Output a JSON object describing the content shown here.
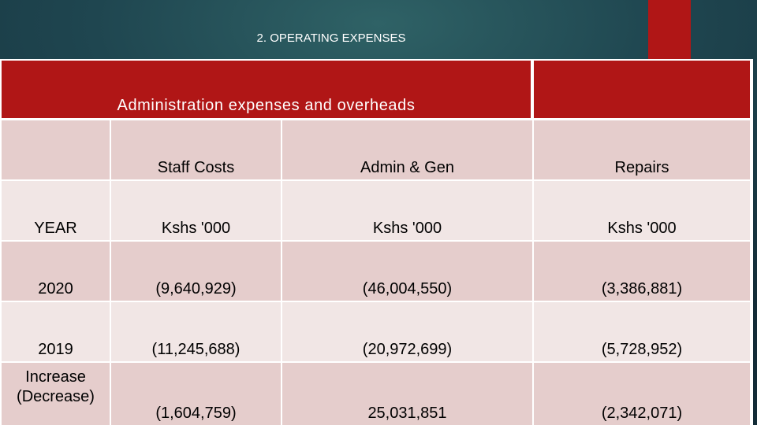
{
  "slide": {
    "title": "2. OPERATING EXPENSES"
  },
  "table": {
    "caption": "Administration expenses and overheads",
    "columns": [
      "",
      "Staff Costs",
      "Admin & Gen",
      "Repairs"
    ],
    "units_row": [
      "YEAR",
      "Kshs '000",
      "Kshs '000",
      "Kshs '000"
    ],
    "rows": [
      {
        "label": "2020",
        "values": [
          "(9,640,929)",
          "(46,004,550)",
          "(3,386,881)"
        ]
      },
      {
        "label": "2019",
        "values": [
          "(11,245,688)",
          "(20,972,699)",
          "(5,728,952)"
        ]
      },
      {
        "label": "Increase (Decrease)",
        "values": [
          "(1,604,759)",
          "25,031,851",
          "(2,342,071)"
        ]
      }
    ]
  },
  "colors": {
    "header_red": "#b01616",
    "row_dark": "#e5cdcc",
    "row_light": "#f1e6e5",
    "background": "#1f4650"
  }
}
